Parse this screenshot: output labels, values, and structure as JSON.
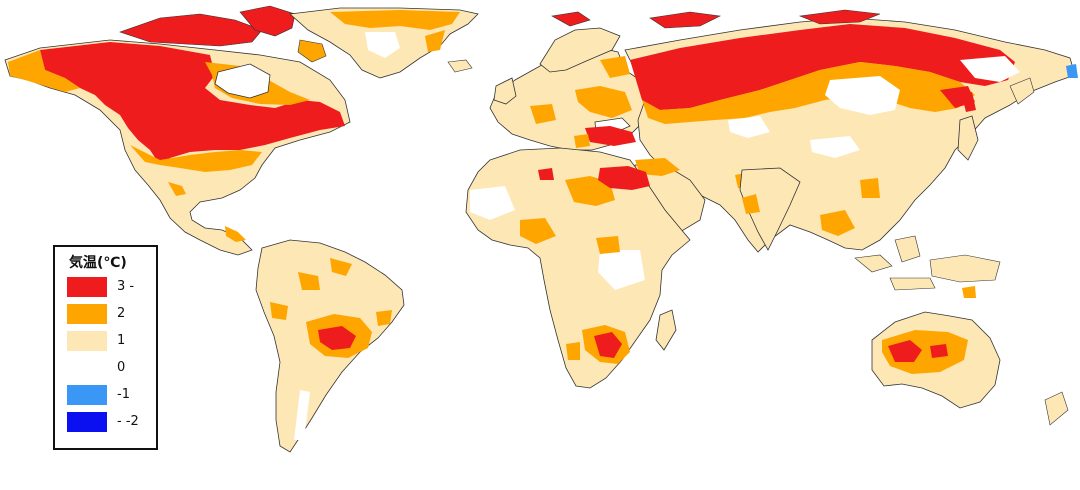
{
  "legend": {
    "title": "気温(℃)",
    "items": [
      {
        "label": "3 -",
        "color": "#ee1c1c"
      },
      {
        "label": "2",
        "color": "#ffa500"
      },
      {
        "label": "1",
        "color": "#fde7b5"
      },
      {
        "label": "0",
        "color": "#ffffff"
      },
      {
        "label": "-1",
        "color": "#3b97f5"
      },
      {
        "label": "- -2",
        "color": "#0a10f0"
      }
    ]
  },
  "colors": {
    "ocean": "#ffffff",
    "border": "#333333",
    "anomaly_3": "#ee1c1c",
    "anomaly_2": "#ffa500",
    "anomaly_1": "#fde7b5",
    "anomaly_neg1": "#3b97f5"
  }
}
